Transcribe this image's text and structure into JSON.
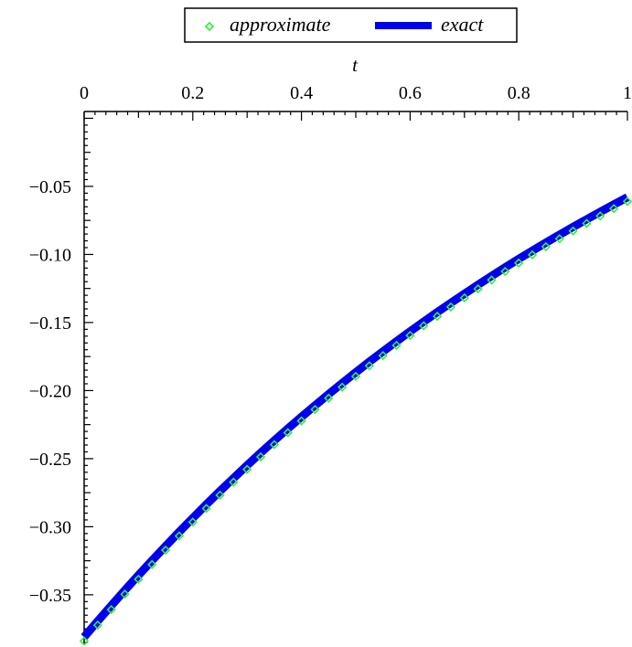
{
  "chart_data": {
    "type": "line",
    "xlabel": "t",
    "ylabel": "",
    "xlim": [
      0,
      1
    ],
    "ylim": [
      -0.387,
      0.005
    ],
    "x_ticks": [
      "0",
      "0.2",
      "0.4",
      "0.6",
      "0.8",
      "1"
    ],
    "y_ticks": [
      "−0.05",
      "−0.10",
      "−0.15",
      "−0.20",
      "−0.25",
      "−0.30",
      "−0.35"
    ],
    "x_axis_position": "top",
    "legend_position": "top-center",
    "grid": false,
    "series": [
      {
        "name": "approximate",
        "style": "markers",
        "marker": "diamond",
        "color": "#33ee33",
        "x": [
          0,
          0.025,
          0.05,
          0.075,
          0.1,
          0.125,
          0.15,
          0.175,
          0.2,
          0.225,
          0.25,
          0.275,
          0.3,
          0.325,
          0.35,
          0.375,
          0.4,
          0.425,
          0.45,
          0.475,
          0.5,
          0.525,
          0.55,
          0.575,
          0.6,
          0.625,
          0.65,
          0.675,
          0.7,
          0.725,
          0.75,
          0.775,
          0.8,
          0.825,
          0.85,
          0.875,
          0.9,
          0.925,
          0.95,
          0.975,
          1
        ],
        "y": [
          -0.384,
          -0.3723,
          -0.3609,
          -0.3496,
          -0.3386,
          -0.3278,
          -0.3172,
          -0.3068,
          -0.2966,
          -0.2866,
          -0.2768,
          -0.2673,
          -0.2579,
          -0.2487,
          -0.2397,
          -0.2309,
          -0.2223,
          -0.2139,
          -0.2056,
          -0.1975,
          -0.1896,
          -0.1818,
          -0.1743,
          -0.1668,
          -0.1595,
          -0.1524,
          -0.1454,
          -0.1386,
          -0.1319,
          -0.1253,
          -0.1188,
          -0.1125,
          -0.1063,
          -0.1003,
          -0.0943,
          -0.0885,
          -0.0828,
          -0.0772,
          -0.0717,
          -0.0663,
          -0.061
        ]
      },
      {
        "name": "exact",
        "style": "line",
        "color": "#0000ee",
        "x": [
          0,
          0.025,
          0.05,
          0.075,
          0.1,
          0.125,
          0.15,
          0.175,
          0.2,
          0.225,
          0.25,
          0.275,
          0.3,
          0.325,
          0.35,
          0.375,
          0.4,
          0.425,
          0.45,
          0.475,
          0.5,
          0.525,
          0.55,
          0.575,
          0.6,
          0.625,
          0.65,
          0.675,
          0.7,
          0.725,
          0.75,
          0.775,
          0.8,
          0.825,
          0.85,
          0.875,
          0.9,
          0.925,
          0.95,
          0.975,
          1
        ],
        "y": [
          -0.381,
          -0.3693,
          -0.3579,
          -0.3466,
          -0.3356,
          -0.3248,
          -0.3142,
          -0.3038,
          -0.2936,
          -0.2836,
          -0.2738,
          -0.2643,
          -0.2549,
          -0.2457,
          -0.2367,
          -0.2279,
          -0.2193,
          -0.2109,
          -0.2026,
          -0.1945,
          -0.1866,
          -0.1788,
          -0.1713,
          -0.1638,
          -0.1565,
          -0.1494,
          -0.1424,
          -0.1356,
          -0.1289,
          -0.1223,
          -0.1158,
          -0.1095,
          -0.1033,
          -0.0973,
          -0.0913,
          -0.0855,
          -0.0798,
          -0.0742,
          -0.0687,
          -0.0633,
          -0.058
        ]
      }
    ]
  }
}
